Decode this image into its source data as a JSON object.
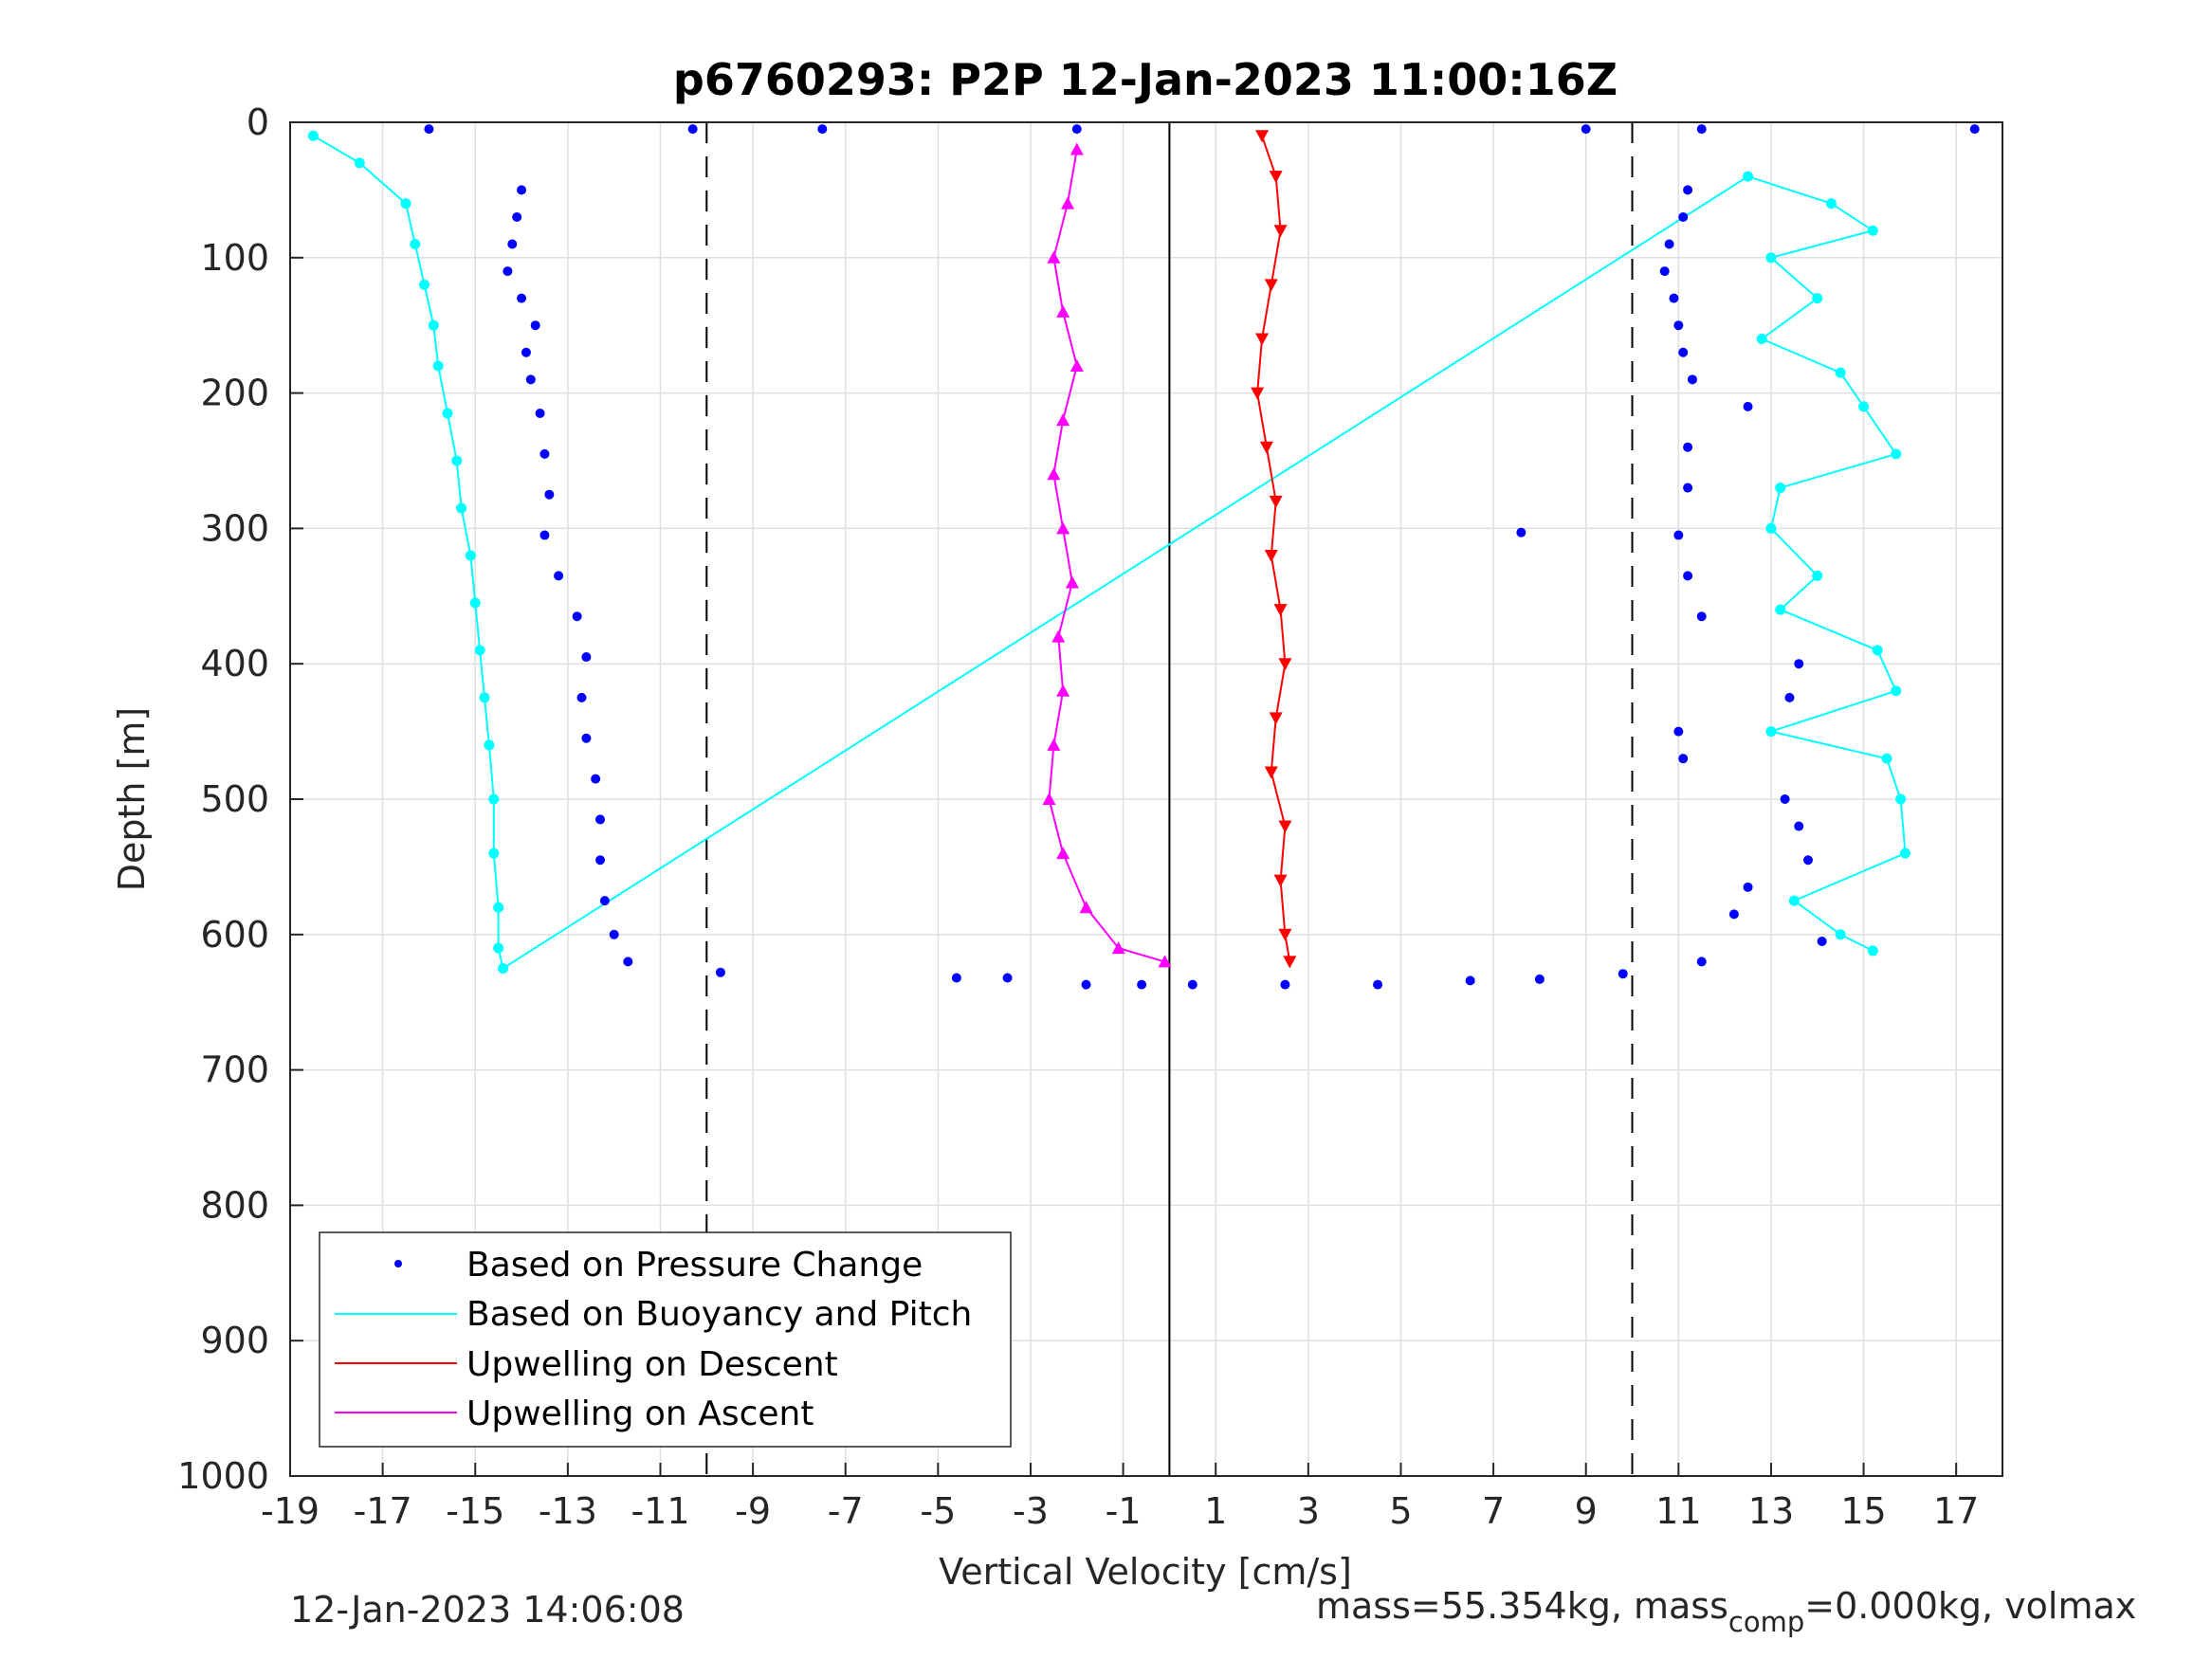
{
  "colors": {
    "pressure": "#0000ff",
    "buoyancy": "#00ffff",
    "descent": "#ff0000",
    "ascent": "#ff00ff",
    "axis": "#262626",
    "grid": "#dfdfdf"
  },
  "footer": {
    "left": "12-Jan-2023 14:06:08",
    "right_prefix": "mass=55.354kg, mass",
    "right_sub": "comp",
    "right_suffix": "=0.000kg, volmax"
  },
  "chart_data": {
    "type": "scatter",
    "title": "p6760293: P2P 12-Jan-2023 11:00:16Z",
    "xlabel": "Vertical Velocity [cm/s]",
    "ylabel": "Depth [m]",
    "xlim": [
      -19,
      18
    ],
    "ylim": [
      0,
      1000
    ],
    "y_reversed": true,
    "grid": true,
    "xticks": [
      -19,
      -17,
      -15,
      -13,
      -11,
      -9,
      -7,
      -5,
      -3,
      -1,
      1,
      3,
      5,
      7,
      9,
      11,
      13,
      15,
      17
    ],
    "yticks": [
      0,
      100,
      200,
      300,
      400,
      500,
      600,
      700,
      800,
      900,
      1000
    ],
    "reference_lines": [
      {
        "x": -10,
        "style": "dashed"
      },
      {
        "x": 10,
        "style": "dashed"
      },
      {
        "x": 0,
        "style": "solid"
      }
    ],
    "legend": {
      "position": "bottom-left",
      "entries": [
        "Based on Pressure Change",
        "Based on Buoyancy and Pitch",
        "Upwelling on Descent",
        "Upwelling on Ascent"
      ]
    },
    "series": [
      {
        "name": "Based on Pressure Change",
        "marker": "dot",
        "points": [
          [
            -14.0,
            50
          ],
          [
            -14.1,
            70
          ],
          [
            -14.2,
            90
          ],
          [
            -14.3,
            110
          ],
          [
            -14.0,
            130
          ],
          [
            -13.7,
            150
          ],
          [
            -13.9,
            170
          ],
          [
            -13.8,
            190
          ],
          [
            -13.6,
            215
          ],
          [
            -13.5,
            245
          ],
          [
            -13.4,
            275
          ],
          [
            -13.5,
            305
          ],
          [
            -13.2,
            335
          ],
          [
            -12.8,
            365
          ],
          [
            -12.6,
            395
          ],
          [
            -12.7,
            425
          ],
          [
            -12.6,
            455
          ],
          [
            -12.4,
            485
          ],
          [
            -12.3,
            515
          ],
          [
            -12.3,
            545
          ],
          [
            -12.2,
            575
          ],
          [
            -12.0,
            600
          ],
          [
            -11.7,
            620
          ],
          [
            11.2,
            50
          ],
          [
            11.1,
            70
          ],
          [
            10.8,
            90
          ],
          [
            10.7,
            110
          ],
          [
            10.9,
            130
          ],
          [
            11.0,
            150
          ],
          [
            11.1,
            170
          ],
          [
            11.3,
            190
          ],
          [
            12.5,
            210
          ],
          [
            11.2,
            240
          ],
          [
            11.2,
            270
          ],
          [
            11.0,
            305
          ],
          [
            11.2,
            335
          ],
          [
            11.5,
            365
          ],
          [
            13.6,
            400
          ],
          [
            13.4,
            425
          ],
          [
            11.0,
            450
          ],
          [
            11.1,
            470
          ],
          [
            13.3,
            500
          ],
          [
            13.6,
            520
          ],
          [
            13.8,
            545
          ],
          [
            12.5,
            565
          ],
          [
            12.2,
            585
          ],
          [
            14.1,
            605
          ],
          [
            11.5,
            620
          ],
          [
            -4.6,
            632
          ],
          [
            -3.5,
            632
          ],
          [
            -1.8,
            637
          ],
          [
            -0.6,
            637
          ],
          [
            0.5,
            637
          ],
          [
            2.5,
            637
          ],
          [
            4.5,
            637
          ],
          [
            6.5,
            634
          ],
          [
            8.0,
            633
          ],
          [
            9.8,
            629
          ],
          [
            -9.7,
            628
          ],
          [
            7.6,
            303
          ],
          [
            -16.0,
            5
          ],
          [
            -10.3,
            5
          ],
          [
            -7.5,
            5
          ],
          [
            -2.0,
            5
          ],
          [
            9.0,
            5
          ],
          [
            11.5,
            5
          ],
          [
            17.4,
            5
          ]
        ]
      },
      {
        "name": "Based on Buoyancy and Pitch",
        "marker": "circle-line",
        "points": [
          [
            -18.5,
            10
          ],
          [
            -17.5,
            30
          ],
          [
            -16.5,
            60
          ],
          [
            -16.3,
            90
          ],
          [
            -16.1,
            120
          ],
          [
            -15.9,
            150
          ],
          [
            -15.8,
            180
          ],
          [
            -15.6,
            215
          ],
          [
            -15.4,
            250
          ],
          [
            -15.3,
            285
          ],
          [
            -15.1,
            320
          ],
          [
            -15.0,
            355
          ],
          [
            -14.9,
            390
          ],
          [
            -14.8,
            425
          ],
          [
            -14.7,
            460
          ],
          [
            -14.6,
            500
          ],
          [
            -14.6,
            540
          ],
          [
            -14.5,
            580
          ],
          [
            -14.5,
            610
          ],
          [
            -14.4,
            625
          ],
          [
            12.5,
            40
          ],
          [
            14.3,
            60
          ],
          [
            15.2,
            80
          ],
          [
            13.0,
            100
          ],
          [
            14.0,
            130
          ],
          [
            12.8,
            160
          ],
          [
            14.5,
            185
          ],
          [
            15.0,
            210
          ],
          [
            15.7,
            245
          ],
          [
            13.2,
            270
          ],
          [
            13.0,
            300
          ],
          [
            14.0,
            335
          ],
          [
            13.2,
            360
          ],
          [
            15.3,
            390
          ],
          [
            15.7,
            420
          ],
          [
            13.0,
            450
          ],
          [
            15.5,
            470
          ],
          [
            15.8,
            500
          ],
          [
            15.9,
            540
          ],
          [
            13.5,
            575
          ],
          [
            14.5,
            600
          ],
          [
            15.2,
            612
          ]
        ]
      },
      {
        "name": "Upwelling on Descent",
        "marker": "triangle-down",
        "points": [
          [
            2.0,
            10
          ],
          [
            2.3,
            40
          ],
          [
            2.4,
            80
          ],
          [
            2.2,
            120
          ],
          [
            2.0,
            160
          ],
          [
            1.9,
            200
          ],
          [
            2.1,
            240
          ],
          [
            2.3,
            280
          ],
          [
            2.2,
            320
          ],
          [
            2.4,
            360
          ],
          [
            2.5,
            400
          ],
          [
            2.3,
            440
          ],
          [
            2.2,
            480
          ],
          [
            2.5,
            520
          ],
          [
            2.4,
            560
          ],
          [
            2.5,
            600
          ],
          [
            2.6,
            620
          ]
        ]
      },
      {
        "name": "Upwelling on Ascent",
        "marker": "triangle-up",
        "points": [
          [
            -2.0,
            20
          ],
          [
            -2.2,
            60
          ],
          [
            -2.5,
            100
          ],
          [
            -2.3,
            140
          ],
          [
            -2.0,
            180
          ],
          [
            -2.3,
            220
          ],
          [
            -2.5,
            260
          ],
          [
            -2.3,
            300
          ],
          [
            -2.1,
            340
          ],
          [
            -2.4,
            380
          ],
          [
            -2.3,
            420
          ],
          [
            -2.5,
            460
          ],
          [
            -2.6,
            500
          ],
          [
            -2.3,
            540
          ],
          [
            -1.8,
            580
          ],
          [
            -1.1,
            610
          ],
          [
            -0.1,
            620
          ]
        ]
      }
    ]
  }
}
